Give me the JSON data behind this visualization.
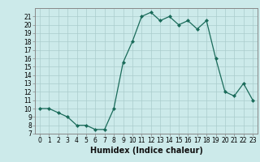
{
  "x": [
    0,
    1,
    2,
    3,
    4,
    5,
    6,
    7,
    8,
    9,
    10,
    11,
    12,
    13,
    14,
    15,
    16,
    17,
    18,
    19,
    20,
    21,
    22,
    23
  ],
  "y": [
    10,
    10,
    9.5,
    9,
    8,
    8,
    7.5,
    7.5,
    10,
    15.5,
    18,
    21,
    21.5,
    20.5,
    21,
    20,
    20.5,
    19.5,
    20.5,
    16,
    12,
    11.5,
    13,
    11
  ],
  "xlabel": "Humidex (Indice chaleur)",
  "xlim": [
    -0.5,
    23.5
  ],
  "ylim": [
    7,
    22
  ],
  "yticks": [
    7,
    8,
    9,
    10,
    11,
    12,
    13,
    14,
    15,
    16,
    17,
    18,
    19,
    20,
    21
  ],
  "xticks": [
    0,
    1,
    2,
    3,
    4,
    5,
    6,
    7,
    8,
    9,
    10,
    11,
    12,
    13,
    14,
    15,
    16,
    17,
    18,
    19,
    20,
    21,
    22,
    23
  ],
  "line_color": "#1a6b5a",
  "marker": "D",
  "marker_size": 2,
  "bg_color": "#cceaea",
  "grid_color": "#aacccc",
  "axes_color": "#888888",
  "tick_fontsize": 5.5,
  "xlabel_fontsize": 7
}
